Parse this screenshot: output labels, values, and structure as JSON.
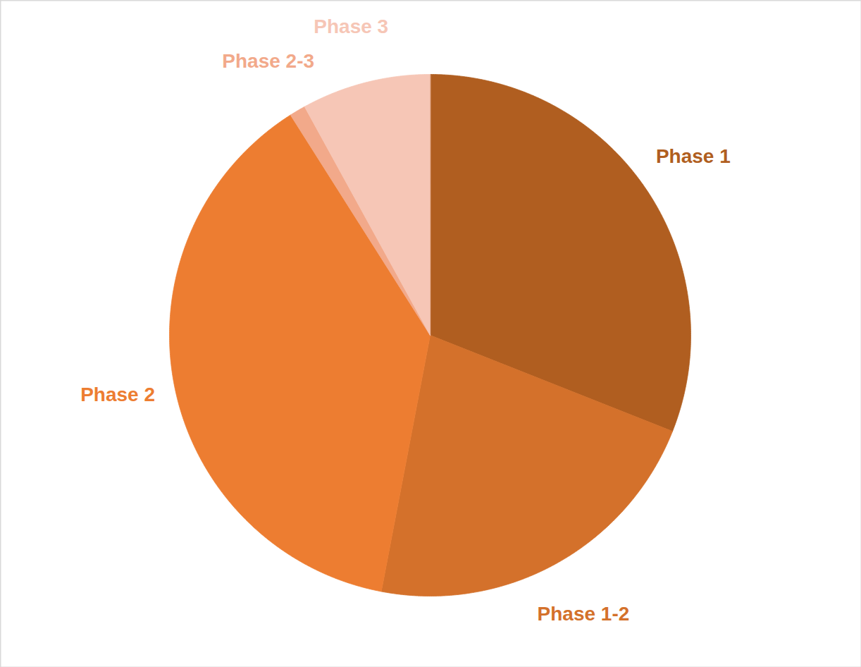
{
  "chart_data": {
    "type": "pie",
    "categories": [
      "Phase 1",
      "Phase 1-2",
      "Phase 2",
      "Phase 2-3",
      "Phase 3"
    ],
    "values": [
      31,
      22,
      38,
      1,
      8
    ],
    "colors": [
      "#b05e20",
      "#d4712b",
      "#ed7d31",
      "#f2a98a",
      "#f6c6b6"
    ]
  }
}
